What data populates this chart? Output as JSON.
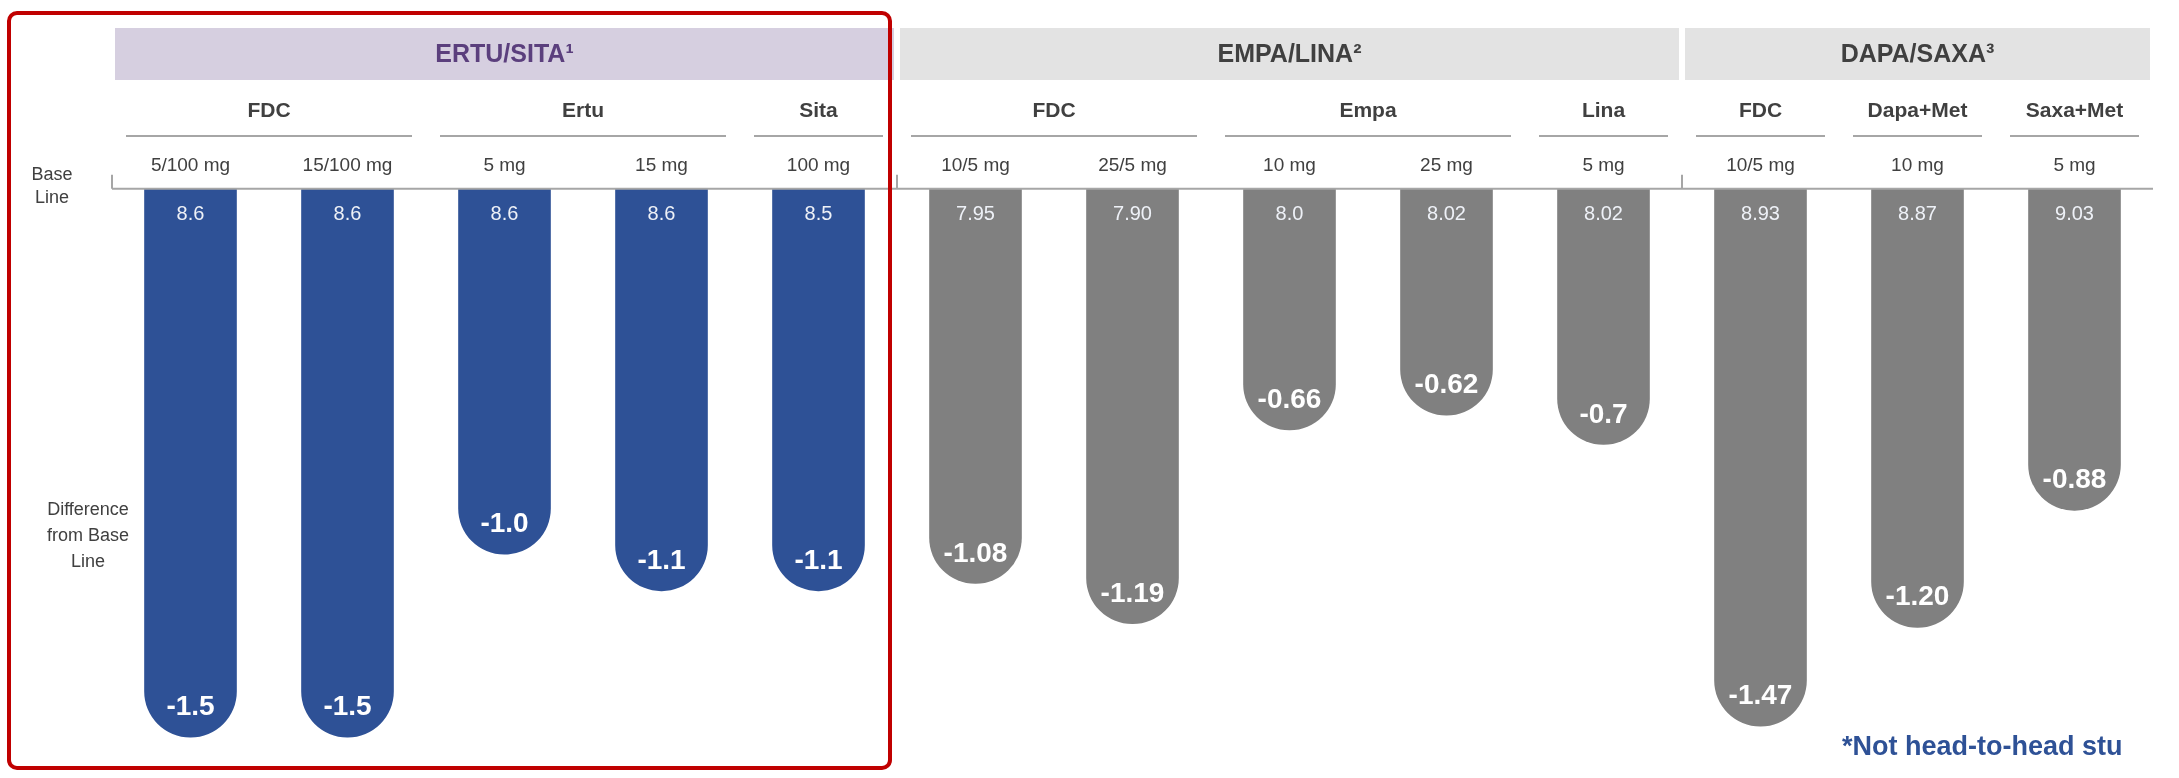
{
  "chart_data": {
    "type": "bar",
    "categories": [
      "5/100 mg",
      "15/100 mg",
      "5 mg",
      "15 mg",
      "100 mg",
      "10/5 mg",
      "25/5 mg",
      "10 mg",
      "25 mg",
      "5 mg",
      "10/5 mg",
      "10 mg",
      "5 mg"
    ],
    "values": [
      -1.5,
      -1.5,
      -1.0,
      -1.1,
      -1.1,
      -1.08,
      -1.19,
      -0.66,
      -0.62,
      -0.7,
      -1.47,
      -1.2,
      -0.88
    ],
    "value_labels": [
      "-1.5",
      "-1.5",
      "-1.0",
      "-1.1",
      "-1.1",
      "-1.08",
      "-1.19",
      "-0.66",
      "-0.62",
      "-0.7",
      "-1.47",
      "-1.20",
      "-0.88"
    ],
    "colors": [
      "#2e5196",
      "#2e5196",
      "#2e5196",
      "#2e5196",
      "#2e5196",
      "#808080",
      "#808080",
      "#808080",
      "#808080",
      "#808080",
      "#808080",
      "#808080",
      "#808080"
    ],
    "annotations": [
      "ERTU/SITA¹",
      "EMPA/LINA²",
      "DAPA/SAXA³",
      "FDC",
      "Ertu",
      "Sita",
      "FDC",
      "Empa",
      "Lina",
      "FDC",
      "Dapa+Met",
      "Saxa+Met",
      "8.6",
      "8.6",
      "8.6",
      "8.6",
      "8.5",
      "7.95",
      "7.90",
      "8.0",
      "8.02",
      "8.02",
      "8.93",
      "8.87",
      "9.03",
      "Base Line",
      "Difference from Base Line",
      "*Not head-to-head stu"
    ],
    "legend": false
  }
}
